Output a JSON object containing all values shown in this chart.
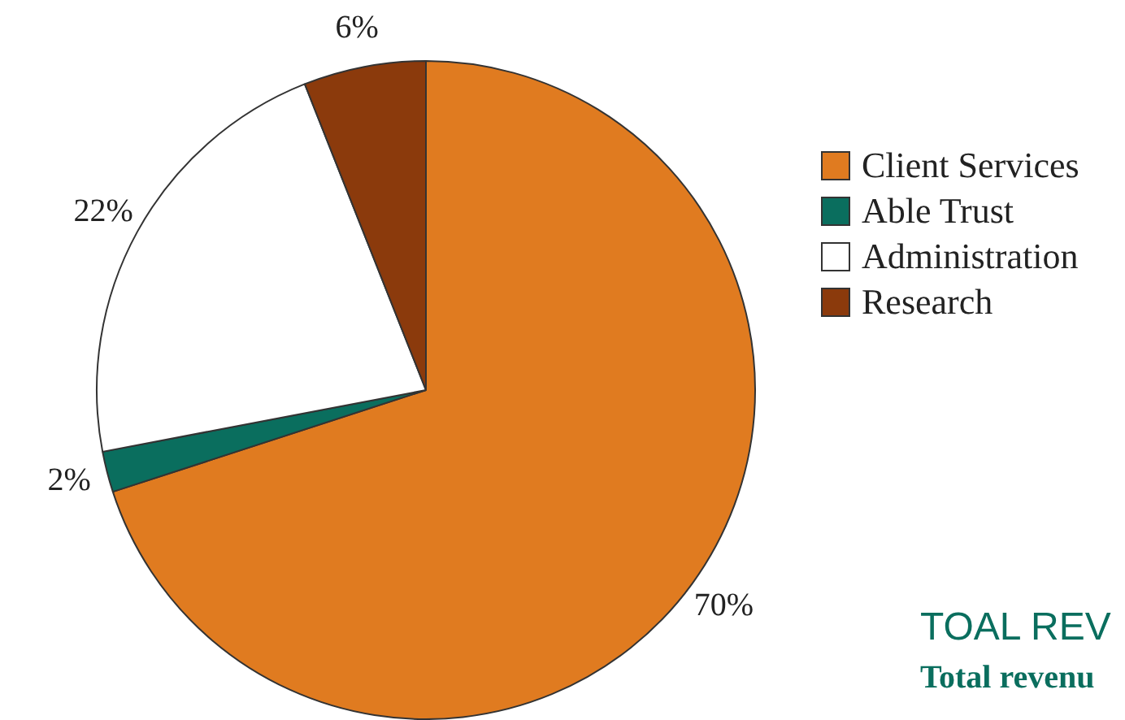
{
  "chart_data": {
    "type": "pie",
    "categories": [
      "Client Services",
      "Able Trust",
      "Administration",
      "Research"
    ],
    "values": [
      70,
      2,
      22,
      6
    ],
    "colors": [
      "#e07b20",
      "#0a6e5e",
      "#ffffff",
      "#8b3a0c"
    ],
    "value_labels": [
      "70%",
      "2%",
      "22%",
      "6%"
    ],
    "legend": "right",
    "annotations": [
      "TOAL REV",
      "Total revenu"
    ]
  }
}
